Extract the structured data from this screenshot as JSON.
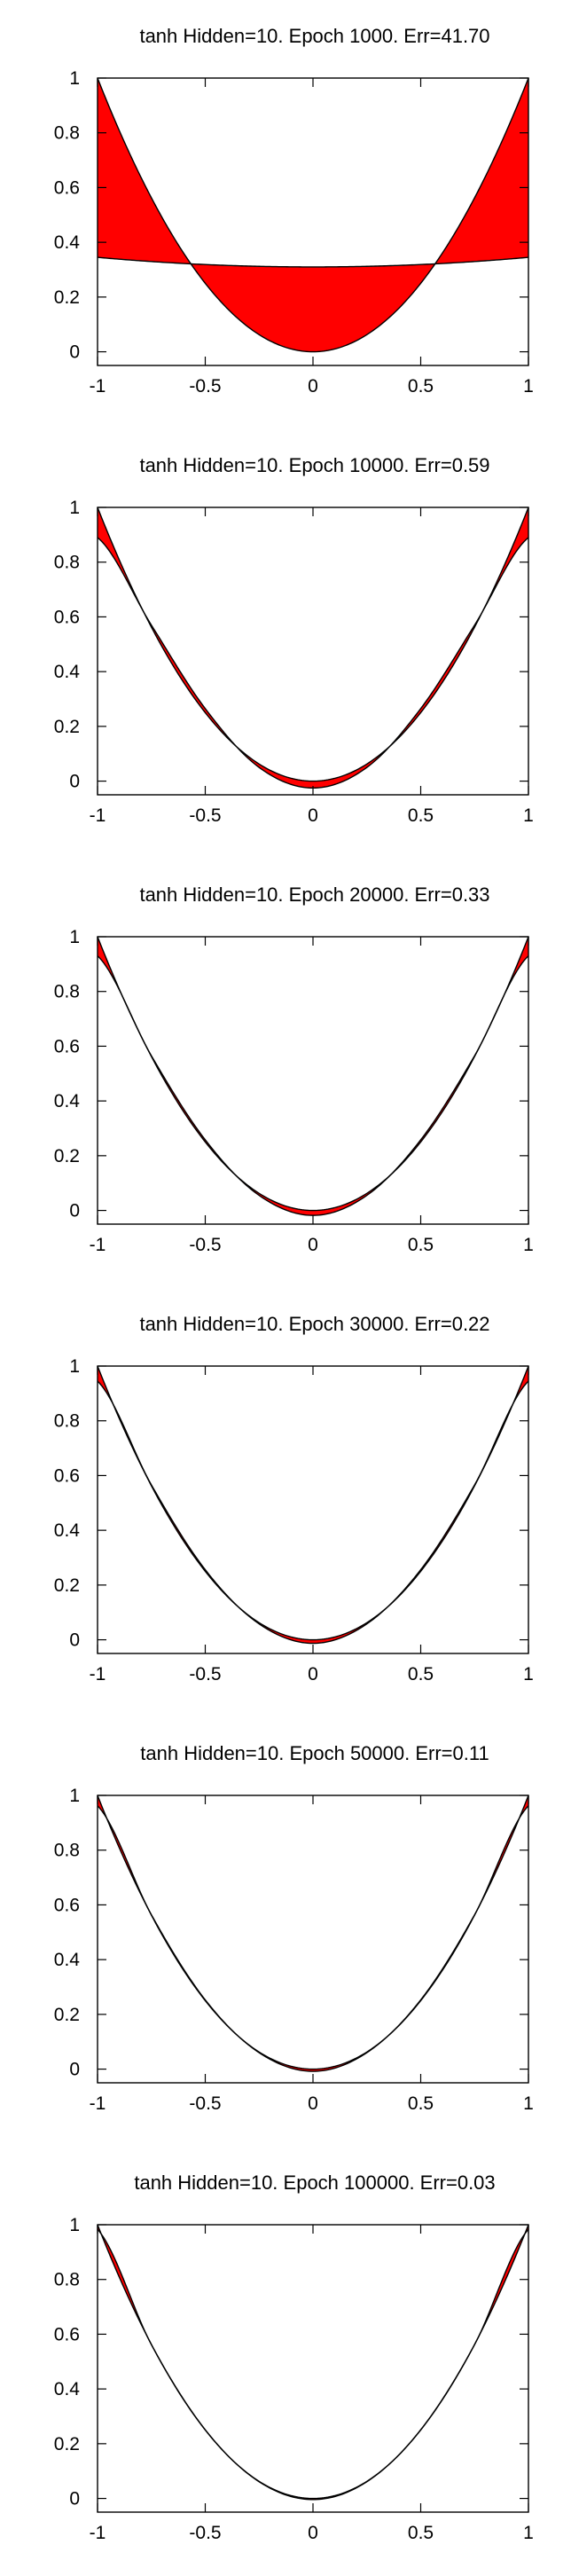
{
  "chart_data": [
    {
      "type": "area",
      "title": "tanh Hidden=10. Epoch 1000. Err=41.70",
      "xlim": [
        -1,
        1
      ],
      "ylim": [
        -0.05,
        1.0
      ],
      "xticks": [
        "-1",
        "-0.5",
        "0",
        "0.5",
        "1"
      ],
      "yticks": [
        "0",
        "0.2",
        "0.4",
        "0.6",
        "0.8",
        "1"
      ],
      "xtick_values": [
        -1,
        -0.5,
        0,
        0.5,
        1
      ],
      "ytick_values": [
        0,
        0.2,
        0.4,
        0.6,
        0.8,
        1
      ],
      "fill_color": "#ff0000",
      "series": [
        {
          "x": [
            -1,
            -0.5,
            0,
            0.5,
            1
          ],
          "values": [
            1,
            0.25,
            0,
            0.25,
            1
          ]
        },
        {
          "x": [
            -1,
            -0.5,
            0,
            0.5,
            1
          ],
          "values": [
            0.345,
            0.322,
            0.31,
            0.322,
            0.345
          ]
        }
      ]
    },
    {
      "type": "area",
      "title": "tanh Hidden=10. Epoch 10000. Err=0.59",
      "xlim": [
        -1,
        1
      ],
      "ylim": [
        -0.05,
        1.0
      ],
      "xticks": [
        "-1",
        "-0.5",
        "0",
        "0.5",
        "1"
      ],
      "yticks": [
        "0",
        "0.2",
        "0.4",
        "0.6",
        "0.8",
        "1"
      ],
      "xtick_values": [
        -1,
        -0.5,
        0,
        0.5,
        1
      ],
      "ytick_values": [
        0,
        0.2,
        0.4,
        0.6,
        0.8,
        1
      ],
      "fill_color": "#ff0000",
      "series": [
        {
          "x": [
            -1,
            -0.5,
            0,
            0.5,
            1
          ],
          "values": [
            1,
            0.25,
            0,
            0.25,
            1
          ]
        },
        {
          "x": [
            -1,
            -0.75,
            -0.5,
            -0.25,
            0,
            0.25,
            0.5,
            0.75,
            1
          ],
          "values": [
            0.89,
            0.57,
            0.265,
            0.05,
            -0.025,
            0.05,
            0.265,
            0.57,
            0.89
          ]
        }
      ]
    },
    {
      "type": "area",
      "title": "tanh Hidden=10. Epoch 20000. Err=0.33",
      "xlim": [
        -1,
        1
      ],
      "ylim": [
        -0.05,
        1.0
      ],
      "xticks": [
        "-1",
        "-0.5",
        "0",
        "0.5",
        "1"
      ],
      "yticks": [
        "0",
        "0.2",
        "0.4",
        "0.6",
        "0.8",
        "1"
      ],
      "xtick_values": [
        -1,
        -0.5,
        0,
        0.5,
        1
      ],
      "ytick_values": [
        0,
        0.2,
        0.4,
        0.6,
        0.8,
        1
      ],
      "fill_color": "#ff0000",
      "series": [
        {
          "x": [
            -1,
            -0.5,
            0,
            0.5,
            1
          ],
          "values": [
            1,
            0.25,
            0,
            0.25,
            1
          ]
        },
        {
          "x": [
            -1,
            -0.75,
            -0.5,
            -0.25,
            0,
            0.25,
            0.5,
            0.75,
            1
          ],
          "values": [
            0.93,
            0.565,
            0.258,
            0.055,
            -0.018,
            0.055,
            0.258,
            0.565,
            0.93
          ]
        }
      ]
    },
    {
      "type": "area",
      "title": "tanh Hidden=10. Epoch 30000. Err=0.22",
      "xlim": [
        -1,
        1
      ],
      "ylim": [
        -0.05,
        1.0
      ],
      "xticks": [
        "-1",
        "-0.5",
        "0",
        "0.5",
        "1"
      ],
      "yticks": [
        "0",
        "0.2",
        "0.4",
        "0.6",
        "0.8",
        "1"
      ],
      "xtick_values": [
        -1,
        -0.5,
        0,
        0.5,
        1
      ],
      "ytick_values": [
        0,
        0.2,
        0.4,
        0.6,
        0.8,
        1
      ],
      "fill_color": "#ff0000",
      "series": [
        {
          "x": [
            -1,
            -0.5,
            0,
            0.5,
            1
          ],
          "values": [
            1,
            0.25,
            0,
            0.25,
            1
          ]
        },
        {
          "x": [
            -1,
            -0.75,
            -0.5,
            -0.25,
            0,
            0.25,
            0.5,
            0.75,
            1
          ],
          "values": [
            0.945,
            0.566,
            0.256,
            0.058,
            -0.013,
            0.058,
            0.256,
            0.566,
            0.945
          ]
        }
      ]
    },
    {
      "type": "area",
      "title": "tanh Hidden=10. Epoch 50000. Err=0.11",
      "xlim": [
        -1,
        1
      ],
      "ylim": [
        -0.05,
        1.0
      ],
      "xticks": [
        "-1",
        "-0.5",
        "0",
        "0.5",
        "1"
      ],
      "yticks": [
        "0",
        "0.2",
        "0.4",
        "0.6",
        "0.8",
        "1"
      ],
      "xtick_values": [
        -1,
        -0.5,
        0,
        0.5,
        1
      ],
      "ytick_values": [
        0,
        0.2,
        0.4,
        0.6,
        0.8,
        1
      ],
      "fill_color": "#ff0000",
      "series": [
        {
          "x": [
            -1,
            -0.5,
            0,
            0.5,
            1
          ],
          "values": [
            1,
            0.25,
            0,
            0.25,
            1
          ]
        },
        {
          "x": [
            -1,
            -0.75,
            -0.5,
            -0.25,
            0,
            0.25,
            0.5,
            0.75,
            1
          ],
          "values": [
            0.962,
            0.564,
            0.253,
            0.06,
            -0.008,
            0.06,
            0.253,
            0.564,
            0.962
          ]
        }
      ]
    },
    {
      "type": "area",
      "title": "tanh Hidden=10. Epoch 100000. Err=0.03",
      "xlim": [
        -1,
        1
      ],
      "ylim": [
        -0.05,
        1.0
      ],
      "xticks": [
        "-1",
        "-0.5",
        "0",
        "0.5",
        "1"
      ],
      "yticks": [
        "0",
        "0.2",
        "0.4",
        "0.6",
        "0.8",
        "1"
      ],
      "xtick_values": [
        -1,
        -0.5,
        0,
        0.5,
        1
      ],
      "ytick_values": [
        0,
        0.2,
        0.4,
        0.6,
        0.8,
        1
      ],
      "fill_color": "#ff0000",
      "series": [
        {
          "x": [
            -1,
            -0.5,
            0,
            0.5,
            1
          ],
          "values": [
            1,
            0.25,
            0,
            0.25,
            1
          ]
        },
        {
          "x": [
            -1,
            -0.75,
            -0.5,
            -0.25,
            0,
            0.25,
            0.5,
            0.75,
            1
          ],
          "values": [
            0.983,
            0.562,
            0.251,
            0.061,
            -0.004,
            0.061,
            0.251,
            0.562,
            0.983
          ]
        }
      ]
    }
  ]
}
